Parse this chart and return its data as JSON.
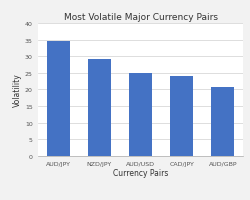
{
  "title": "Most Volatile Major Currency Pairs",
  "xlabel": "Currency Pairs",
  "ylabel": "Volatility",
  "categories": [
    "AUD/JPY",
    "NZD/JPY",
    "AUD/USD",
    "CAD/JPY",
    "AUD/GBP"
  ],
  "values": [
    34.5,
    29.2,
    25.0,
    24.1,
    20.8
  ],
  "bar_color": "#4472C4",
  "ylim": [
    0,
    40
  ],
  "yticks": [
    0,
    5,
    10,
    15,
    20,
    25,
    30,
    35,
    40
  ],
  "background_color": "#f2f2f2",
  "plot_bg_color": "#ffffff",
  "title_fontsize": 6.5,
  "axis_label_fontsize": 5.5,
  "tick_fontsize": 4.5,
  "bar_width": 0.55
}
